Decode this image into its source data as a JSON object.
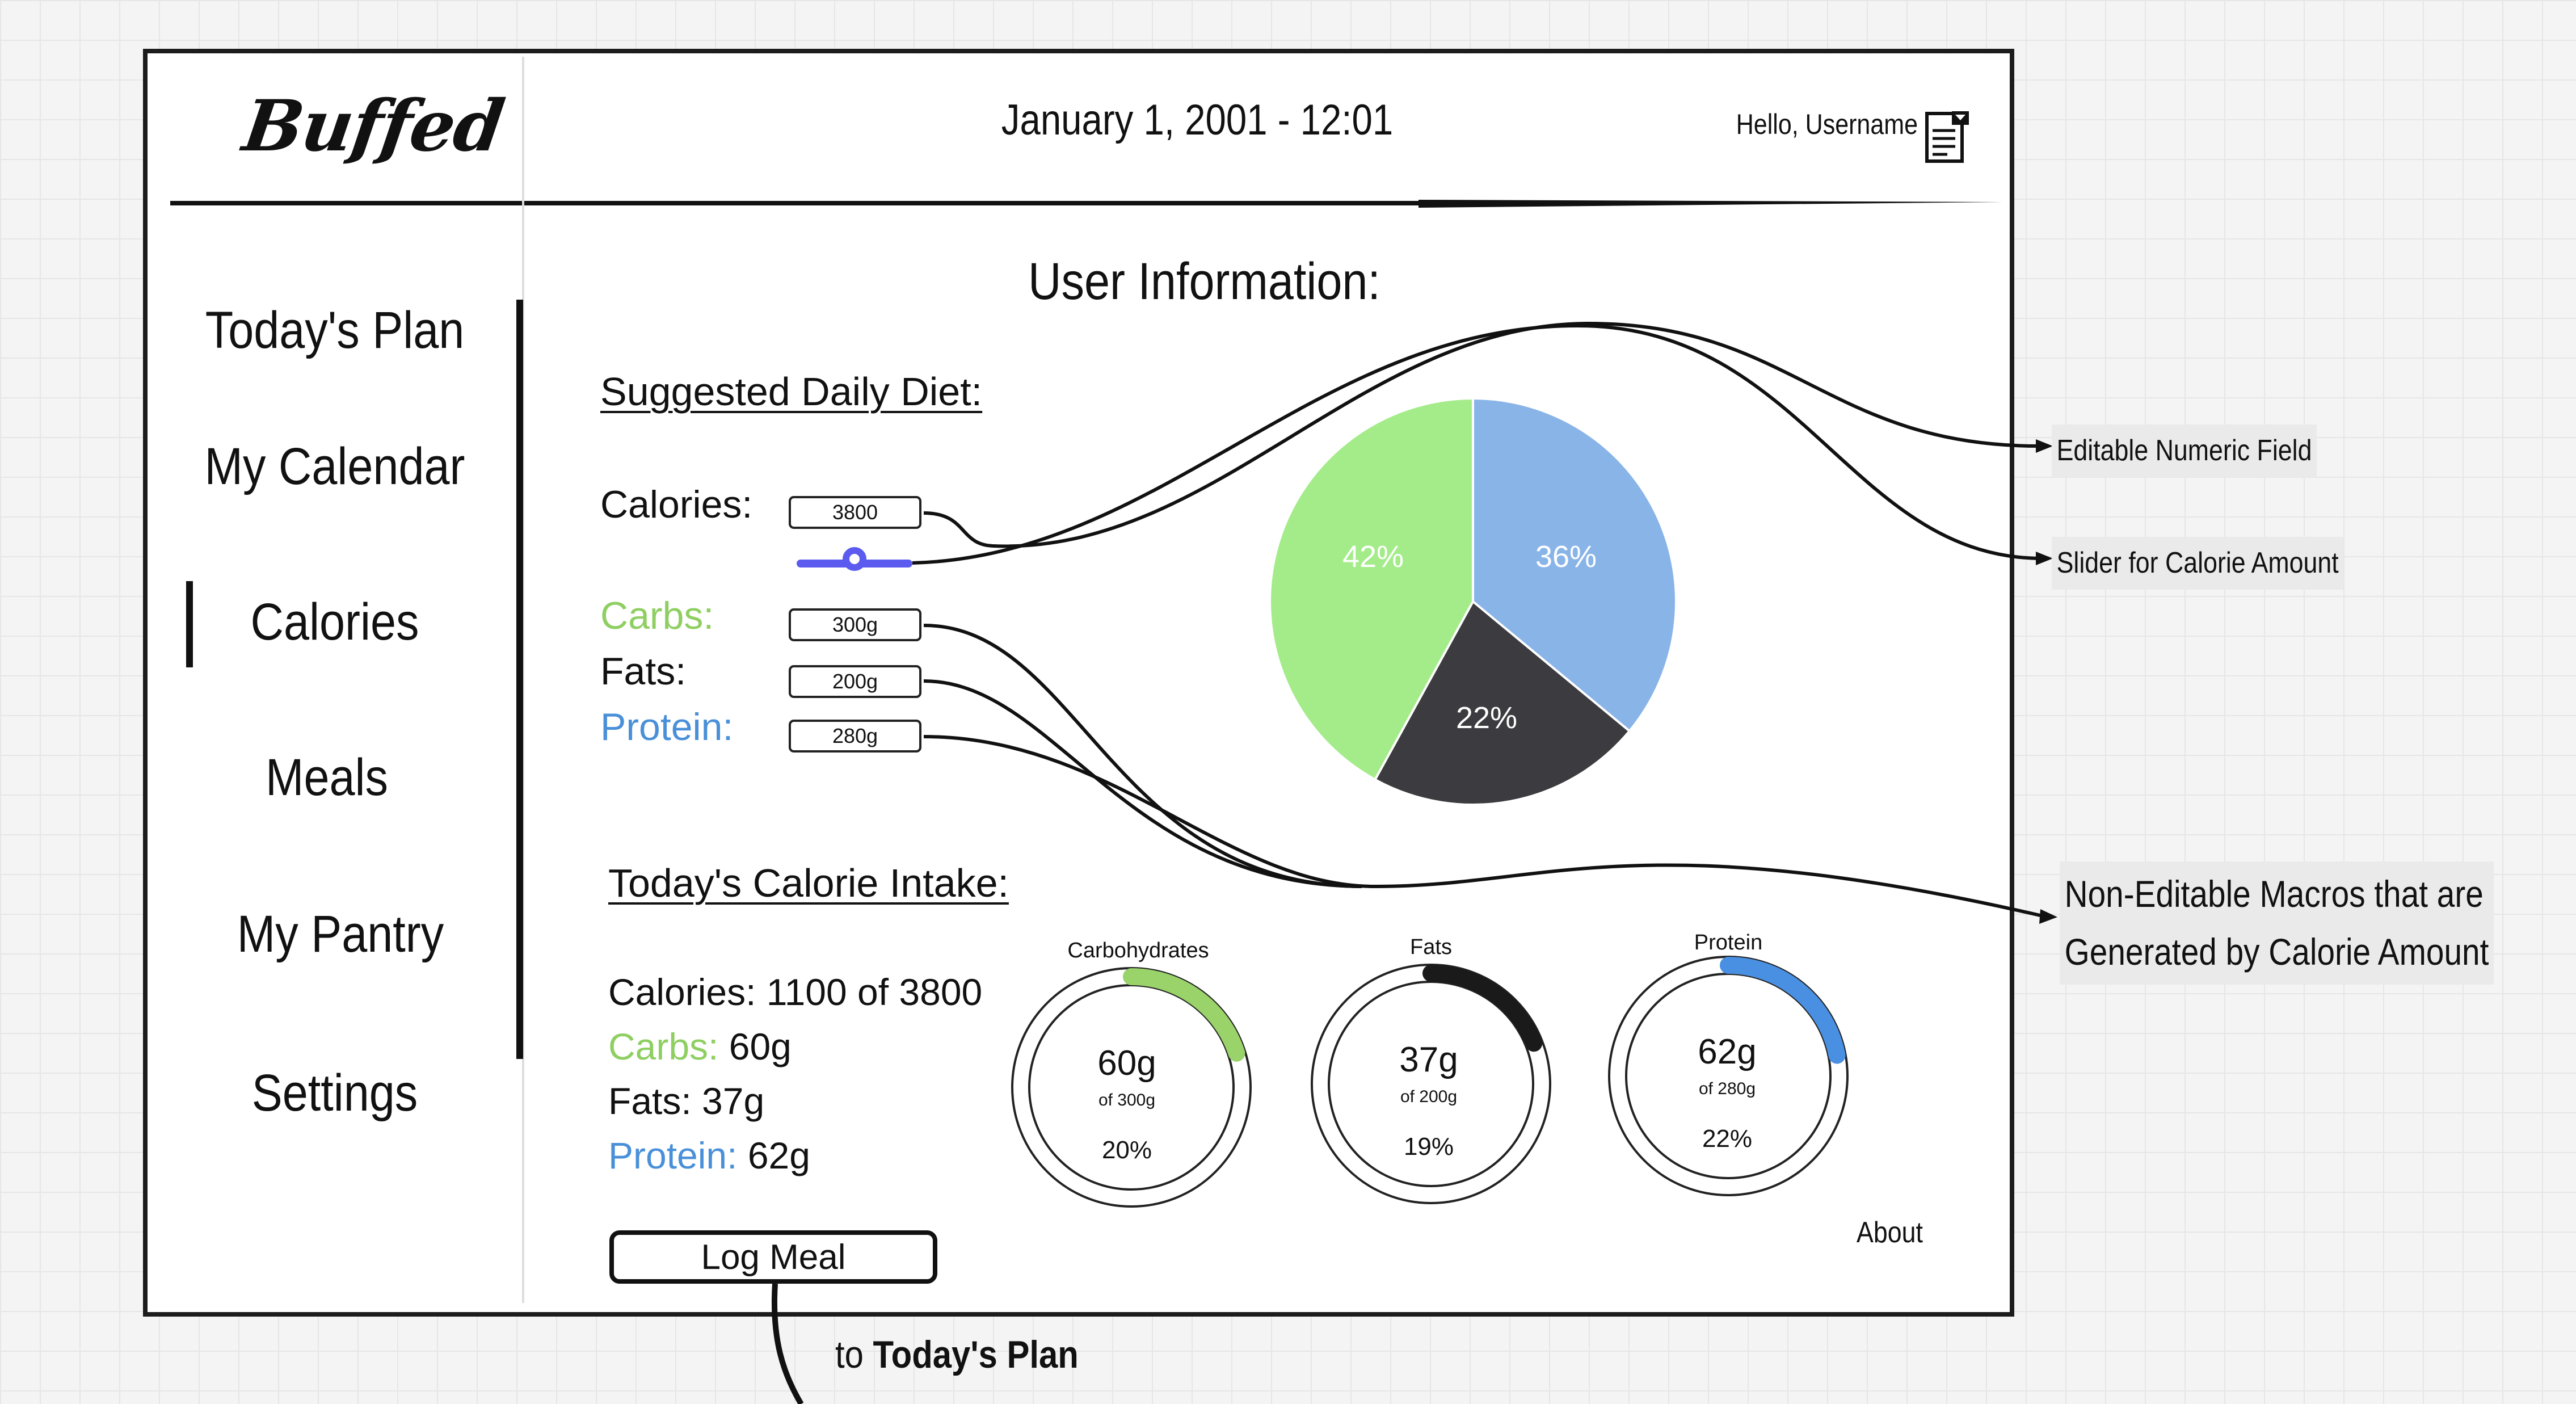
{
  "header": {
    "logo": "Buffed",
    "datetime": "January 1, 2001  -  12:01",
    "greeting": "Hello, Username"
  },
  "sidebar": {
    "items": [
      {
        "label": "Today's Plan"
      },
      {
        "label": "My Calendar"
      },
      {
        "label": "Calories",
        "active": true
      },
      {
        "label": "Meals"
      },
      {
        "label": "My Pantry"
      },
      {
        "label": "Settings"
      }
    ]
  },
  "main": {
    "title": "User Information:",
    "diet": {
      "heading": "Suggested Daily Diet:",
      "calories_label": "Calories:",
      "calories_value": "3800",
      "slider_level": 0.5,
      "carbs_label": "Carbs:",
      "carbs_value": "300g",
      "fats_label": "Fats:",
      "fats_value": "200g",
      "protein_label": "Protein:",
      "protein_value": "280g"
    },
    "pie": {
      "slices": [
        {
          "label": "36%",
          "value": 36,
          "color": "#89b4e8"
        },
        {
          "label": "22%",
          "value": 22,
          "color": "#3c3c40"
        },
        {
          "label": "42%",
          "value": 42,
          "color": "#a4ec8a"
        }
      ]
    },
    "intake": {
      "heading": "Today's Calorie Intake:",
      "calories_text": "Calories: 1100 of 3800",
      "carbs_label": "Carbs:",
      "carbs_value": "60g",
      "fats_text": "Fats: 37g",
      "protein_label": "Protein:",
      "protein_value": "62g"
    },
    "rings": [
      {
        "title": "Carbohydrates",
        "value": "60g",
        "of": "of 300g",
        "pct": "20%",
        "fraction": 0.2,
        "color": "#99d36a"
      },
      {
        "title": "Fats",
        "value": "37g",
        "of": "of 200g",
        "pct": "19%",
        "fraction": 0.19,
        "color": "#1a1a1a"
      },
      {
        "title": "Protein",
        "value": "62g",
        "of": "of 280g",
        "pct": "22%",
        "fraction": 0.22,
        "color": "#4a90e2"
      }
    ],
    "log_meal_label": "Log Meal",
    "about_label": "About"
  },
  "annotations": {
    "editable": "Editable Numeric Field",
    "slider": "Slider for Calorie Amount",
    "nonedit_line1": "Non-Editable Macros that are",
    "nonedit_line2": "Generated by Calorie Amount",
    "to_prefix": "to ",
    "to_target": "Today's Plan"
  },
  "colors": {
    "carbs": "#8fcf62",
    "protein": "#4a90d9",
    "slider": "#5b5bef"
  }
}
